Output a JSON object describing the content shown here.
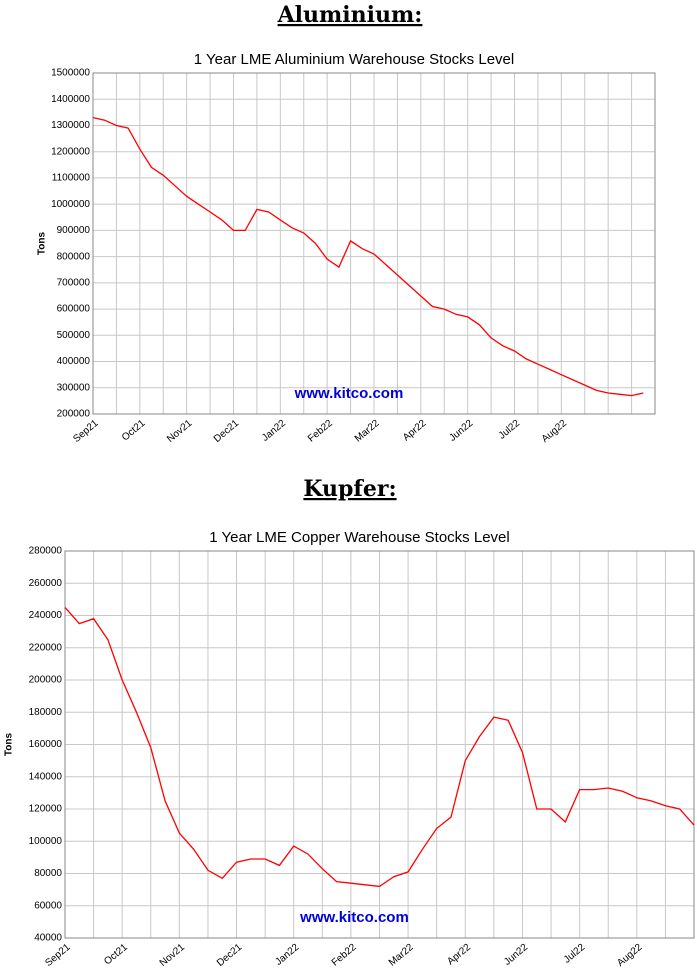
{
  "headings": [
    "Aluminium:",
    "Kupfer:"
  ],
  "chart_data": [
    {
      "type": "line",
      "title": "1 Year LME Aluminium Warehouse Stocks Level",
      "y_label": "Tons",
      "annotation": "www.kitco.com",
      "categories": [
        "Sep21",
        null,
        null,
        null,
        "Oct21",
        null,
        null,
        null,
        "Nov21",
        null,
        null,
        null,
        "Dec21",
        null,
        null,
        null,
        "Jan22",
        null,
        null,
        null,
        "Feb22",
        null,
        null,
        null,
        "Mar22",
        null,
        null,
        null,
        "Apr22",
        null,
        null,
        null,
        "Jun22",
        null,
        null,
        null,
        "Jul22",
        null,
        null,
        null,
        "Aug22",
        null,
        null,
        null,
        null,
        null,
        null,
        null
      ],
      "series": [
        {
          "name": "Stocks",
          "color": "#ff0000",
          "values": [
            1330000,
            1320000,
            1300000,
            1290000,
            1210000,
            1140000,
            1110000,
            1070000,
            1030000,
            1000000,
            970000,
            940000,
            900000,
            900000,
            980000,
            970000,
            940000,
            910000,
            890000,
            850000,
            790000,
            760000,
            860000,
            830000,
            810000,
            770000,
            730000,
            690000,
            650000,
            610000,
            600000,
            580000,
            570000,
            540000,
            490000,
            460000,
            440000,
            410000,
            390000,
            370000,
            350000,
            330000,
            310000,
            290000,
            280000,
            275000,
            270000,
            280000
          ]
        }
      ],
      "ylim": [
        200000,
        1500000
      ],
      "yticks": [
        200000,
        300000,
        400000,
        500000,
        600000,
        700000,
        800000,
        900000,
        1000000,
        1100000,
        1200000,
        1300000,
        1400000,
        1500000
      ],
      "grid": true
    },
    {
      "type": "line",
      "title": "1 Year LME Copper Warehouse Stocks Level",
      "y_label": "Tons",
      "annotation": "www.kitco.com",
      "categories": [
        "Sep21",
        null,
        null,
        null,
        "Oct21",
        null,
        null,
        null,
        "Nov21",
        null,
        null,
        null,
        "Dec21",
        null,
        null,
        null,
        "Jan22",
        null,
        null,
        null,
        "Feb22",
        null,
        null,
        null,
        "Mar22",
        null,
        null,
        null,
        "Apr22",
        null,
        null,
        null,
        "Jun22",
        null,
        null,
        null,
        "Jul22",
        null,
        null,
        null,
        "Aug22",
        null,
        null,
        null,
        null
      ],
      "series": [
        {
          "name": "Stocks",
          "color": "#ff0000",
          "values": [
            245000,
            235000,
            238000,
            225000,
            200000,
            180000,
            158000,
            125000,
            105000,
            95000,
            82000,
            77000,
            87000,
            89000,
            89000,
            85000,
            97000,
            92000,
            83000,
            75000,
            74000,
            73000,
            72000,
            78000,
            81000,
            95000,
            108000,
            115000,
            150000,
            165000,
            177000,
            175000,
            155000,
            120000,
            120000,
            112000,
            132000,
            132000,
            133000,
            131000,
            127000,
            125000,
            122000,
            120000,
            110000
          ]
        }
      ],
      "ylim": [
        40000,
        280000
      ],
      "yticks": [
        40000,
        60000,
        80000,
        100000,
        120000,
        140000,
        160000,
        180000,
        200000,
        220000,
        240000,
        260000,
        280000
      ],
      "grid": true
    }
  ]
}
